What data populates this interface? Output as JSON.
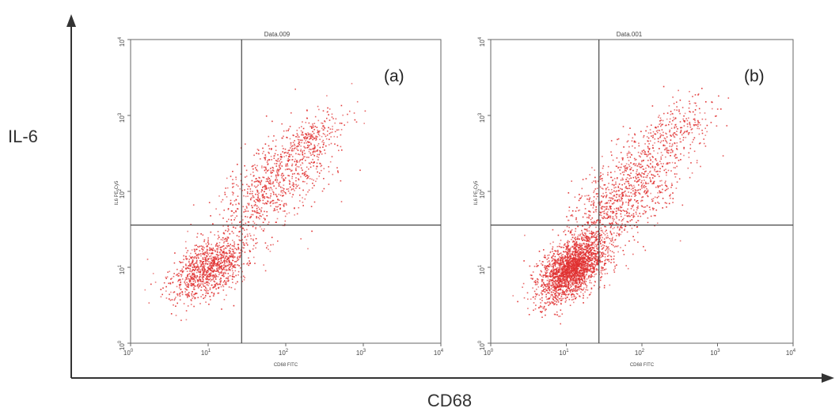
{
  "figure": {
    "outer_x_label": "CD68",
    "outer_y_label": "IL-6",
    "colors": {
      "dots": "#e03030",
      "frame": "#666666",
      "gate": "#444444",
      "outer_axis": "#333333"
    }
  },
  "chart_data": [
    {
      "type": "scatter",
      "title": "Data.009",
      "panel_label": "(a)",
      "xlabel": "CD68 FITC",
      "ylabel": "IL6 PE-Cy5",
      "xscale": "log",
      "yscale": "log",
      "xlim": [
        1,
        10000
      ],
      "ylim": [
        1,
        10000
      ],
      "x_ticks": [
        {
          "base": "10",
          "exp": "0",
          "value": 1
        },
        {
          "base": "10",
          "exp": "1",
          "value": 10
        },
        {
          "base": "10",
          "exp": "2",
          "value": 100
        },
        {
          "base": "10",
          "exp": "3",
          "value": 1000
        },
        {
          "base": "10",
          "exp": "4",
          "value": 10000
        }
      ],
      "y_ticks": [
        {
          "base": "10",
          "exp": "0",
          "value": 1
        },
        {
          "base": "10",
          "exp": "1",
          "value": 10
        },
        {
          "base": "10",
          "exp": "2",
          "value": 100
        },
        {
          "base": "10",
          "exp": "3",
          "value": 1000
        },
        {
          "base": "10",
          "exp": "4",
          "value": 10000
        }
      ],
      "quadrant_gate": {
        "x": 27,
        "y": 36
      },
      "population": {
        "description": "diagonal cloud of events; densest cluster near x≈10, y≈10, extending up to x≈300, y≈800",
        "clusters": [
          {
            "center": [
              10,
              10
            ],
            "spread_log10": [
              0.25,
              0.22
            ],
            "count": 1100
          },
          {
            "center": [
              70,
              120
            ],
            "spread_log10": [
              0.35,
              0.35
            ],
            "count": 750
          },
          {
            "center": [
              200,
              500
            ],
            "spread_log10": [
              0.25,
              0.22
            ],
            "count": 250
          }
        ]
      }
    },
    {
      "type": "scatter",
      "title": "Data.001",
      "panel_label": "(b)",
      "xlabel": "CD68 FITC",
      "ylabel": "IL6 PE-Cy5",
      "xscale": "log",
      "yscale": "log",
      "xlim": [
        1,
        10000
      ],
      "ylim": [
        1,
        10000
      ],
      "x_ticks": [
        {
          "base": "10",
          "exp": "0",
          "value": 1
        },
        {
          "base": "10",
          "exp": "1",
          "value": 10
        },
        {
          "base": "10",
          "exp": "2",
          "value": 100
        },
        {
          "base": "10",
          "exp": "3",
          "value": 1000
        },
        {
          "base": "10",
          "exp": "4",
          "value": 10000
        }
      ],
      "y_ticks": [
        {
          "base": "10",
          "exp": "0",
          "value": 1
        },
        {
          "base": "10",
          "exp": "1",
          "value": 10
        },
        {
          "base": "10",
          "exp": "2",
          "value": 100
        },
        {
          "base": "10",
          "exp": "3",
          "value": 1000
        },
        {
          "base": "10",
          "exp": "4",
          "value": 10000
        }
      ],
      "quadrant_gate": {
        "x": 27,
        "y": 36
      },
      "population": {
        "description": "dense diagonal cloud; heaviest density near x≈12, y≈10, tail extending to x≈600, y≈1500",
        "clusters": [
          {
            "center": [
              12,
              10
            ],
            "spread_log10": [
              0.22,
              0.22
            ],
            "count": 2300
          },
          {
            "center": [
              60,
              90
            ],
            "spread_log10": [
              0.35,
              0.35
            ],
            "count": 900
          },
          {
            "center": [
              250,
              600
            ],
            "spread_log10": [
              0.28,
              0.25
            ],
            "count": 300
          }
        ]
      }
    }
  ]
}
